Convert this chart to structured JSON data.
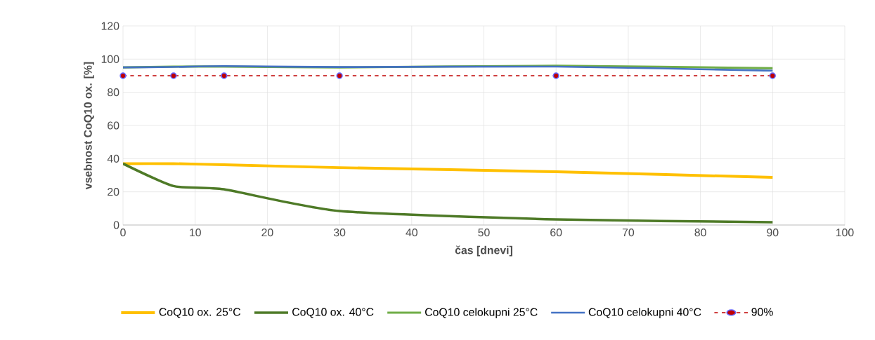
{
  "chart_data": {
    "type": "line",
    "xlabel": "čas [dnevi]",
    "ylabel": "vsebnost CoQ10 ox. [%]",
    "x": [
      0,
      7,
      14,
      30,
      60,
      90
    ],
    "series": [
      {
        "name": "CoQ10 ox. 25°C",
        "color": "#ffc000",
        "values": [
          37,
          37,
          36.3,
          34.6,
          32.1,
          28.7
        ]
      },
      {
        "name": "CoQ10 ox. 40°C",
        "color": "#4e7a27",
        "values": [
          37,
          23.5,
          21.5,
          8.4,
          3.4,
          1.7
        ]
      },
      {
        "name": "CoQ10 celokupni 25°C",
        "color": "#70ad47",
        "values": [
          95,
          95.5,
          95.5,
          95,
          96,
          94.5
        ]
      },
      {
        "name": "CoQ10 celokupni 40°C",
        "color": "#4472c4",
        "values": [
          95,
          95.3,
          95.8,
          95.2,
          95.5,
          93
        ]
      },
      {
        "name": "90%",
        "color": "#c00000",
        "values": [
          90,
          90,
          90,
          90,
          90,
          90
        ],
        "marker": "circle",
        "line_style": "dashed"
      }
    ],
    "xlim": [
      0,
      100
    ],
    "ylim": [
      0,
      120
    ],
    "xticks": [
      0,
      10,
      20,
      30,
      40,
      50,
      60,
      70,
      80,
      90,
      100
    ],
    "yticks": [
      0,
      20,
      40,
      60,
      80,
      100,
      120
    ],
    "grid": true,
    "legend": "bottom",
    "marker": "none",
    "line_style": "solid"
  }
}
